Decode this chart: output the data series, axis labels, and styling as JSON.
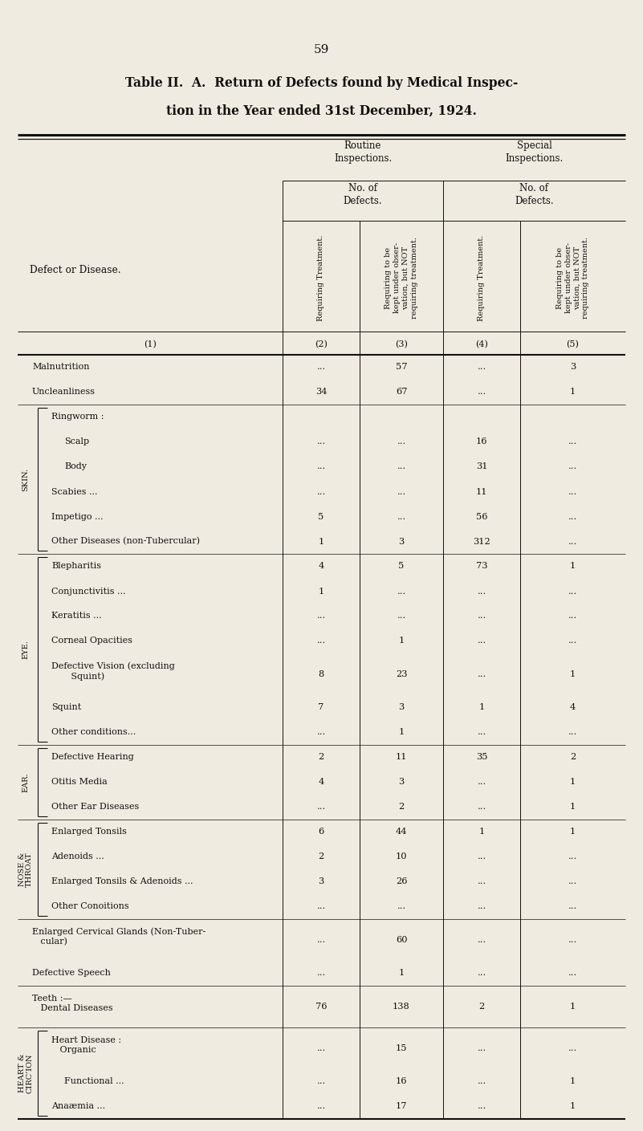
{
  "page_number": "59",
  "title_line1": "Table II.  A.  Return of Defects found by Medical Inspec-",
  "title_line2": "tion in the Year ended 31st December, 1924.",
  "bg_color": "#f0ebe0",
  "rows": [
    {
      "label": "Malnutrition",
      "dots": "...",
      "indent": 0,
      "section": "",
      "c2": "...",
      "c3": "57",
      "c4": "...",
      "c5": "3"
    },
    {
      "label": "Uncleanliness",
      "dots": "...",
      "indent": 0,
      "section": "",
      "c2": "34",
      "c3": "67",
      "c4": "...",
      "c5": "1"
    },
    {
      "label": "Ringworm :",
      "dots": "",
      "indent": 1,
      "section": "SKIN.",
      "c2": "",
      "c3": "",
      "c4": "",
      "c5": ""
    },
    {
      "label": "Scalp",
      "dots": "...",
      "indent": 2,
      "section": "",
      "c2": "...",
      "c3": "...",
      "c4": "16",
      "c5": "..."
    },
    {
      "label": "Body",
      "dots": "...",
      "indent": 2,
      "section": "",
      "c2": "...",
      "c3": "...",
      "c4": "31",
      "c5": "..."
    },
    {
      "label": "Scabies ...",
      "dots": "...",
      "indent": 1,
      "section": "",
      "c2": "...",
      "c3": "...",
      "c4": "11",
      "c5": "..."
    },
    {
      "label": "Impetigo ...",
      "dots": "...",
      "indent": 1,
      "section": "",
      "c2": "5",
      "c3": "...",
      "c4": "56",
      "c5": "..."
    },
    {
      "label": "Other Diseases (non-Tubercular)",
      "dots": "",
      "indent": 1,
      "section": "",
      "c2": "1",
      "c3": "3",
      "c4": "312",
      "c5": "..."
    },
    {
      "label": "Blepharitis",
      "dots": "...",
      "indent": 1,
      "section": "EYE.",
      "c2": "4",
      "c3": "5",
      "c4": "73",
      "c5": "1"
    },
    {
      "label": "Conjunctivitis ...",
      "dots": "...",
      "indent": 1,
      "section": "",
      "c2": "1",
      "c3": "...",
      "c4": "...",
      "c5": "..."
    },
    {
      "label": "Keratitis ...",
      "dots": "...",
      "indent": 1,
      "section": "",
      "c2": "...",
      "c3": "...",
      "c4": "...",
      "c5": "..."
    },
    {
      "label": "Corneal Opacities",
      "dots": "...",
      "indent": 1,
      "section": "",
      "c2": "...",
      "c3": "1",
      "c4": "...",
      "c5": "..."
    },
    {
      "label": "Defective Vision (excluding\n       Squint)",
      "dots": "...",
      "indent": 1,
      "section": "",
      "c2": "8",
      "c3": "23",
      "c4": "...",
      "c5": "1",
      "tall": true
    },
    {
      "label": "Squint",
      "dots": "...",
      "indent": 1,
      "section": "",
      "c2": "7",
      "c3": "3",
      "c4": "1",
      "c5": "4"
    },
    {
      "label": "Other conditions...",
      "dots": "...",
      "indent": 1,
      "section": "",
      "c2": "...",
      "c3": "1",
      "c4": "...",
      "c5": "..."
    },
    {
      "label": "Defective Hearing",
      "dots": "...",
      "indent": 1,
      "section": "EAR.",
      "c2": "2",
      "c3": "11",
      "c4": "35",
      "c5": "2"
    },
    {
      "label": "Otitis Media",
      "dots": "...",
      "indent": 1,
      "section": "",
      "c2": "4",
      "c3": "3",
      "c4": "...",
      "c5": "1"
    },
    {
      "label": "Other Ear Diseases",
      "dots": "...",
      "indent": 1,
      "section": "",
      "c2": "...",
      "c3": "2",
      "c4": "...",
      "c5": "1"
    },
    {
      "label": "Enlarged Tonsils",
      "dots": "...",
      "indent": 1,
      "section": "NOSE &\nTHROAT",
      "c2": "6",
      "c3": "44",
      "c4": "1",
      "c5": "1"
    },
    {
      "label": "Adenoids ...",
      "dots": "...",
      "indent": 1,
      "section": "",
      "c2": "2",
      "c3": "10",
      "c4": "...",
      "c5": "..."
    },
    {
      "label": "Enlarged Tonsils & Adenoids ...",
      "dots": "...",
      "indent": 1,
      "section": "",
      "c2": "3",
      "c3": "26",
      "c4": "...",
      "c5": "..."
    },
    {
      "label": "Other Conoitions",
      "dots": "...",
      "indent": 1,
      "section": "",
      "c2": "...",
      "c3": "...",
      "c4": "...",
      "c5": "..."
    },
    {
      "label": "Enlarged Cervical Glands (Non-Tuber-\n   cular)",
      "dots": "...",
      "indent": 0,
      "section": "",
      "c2": "...",
      "c3": "60",
      "c4": "...",
      "c5": "...",
      "tall": true
    },
    {
      "label": "Defective Speech",
      "dots": "...",
      "indent": 0,
      "section": "",
      "c2": "...",
      "c3": "1",
      "c4": "...",
      "c5": "..."
    },
    {
      "label": "Teeth :—\n   Dental Diseases",
      "dots": "...",
      "indent": 0,
      "section": "",
      "c2": "76",
      "c3": "138",
      "c4": "2",
      "c5": "1",
      "tall": true
    },
    {
      "label": "Heart Disease :\n   Organic",
      "dots": "...",
      "indent": 1,
      "section": "HEART &\nCIRC’ION",
      "c2": "...",
      "c3": "15",
      "c4": "...",
      "c5": "...",
      "tall": true
    },
    {
      "label": "Functional ...",
      "dots": "...",
      "indent": 2,
      "section": "",
      "c2": "...",
      "c3": "16",
      "c4": "...",
      "c5": "1"
    },
    {
      "label": "Anaæmia ...",
      "dots": "...",
      "indent": 1,
      "section": "",
      "c2": "...",
      "c3": "17",
      "c4": "...",
      "c5": "1"
    }
  ],
  "brackets": [
    {
      "label": "SKIN.",
      "start": 2,
      "end": 7
    },
    {
      "label": "EYE.",
      "start": 8,
      "end": 14
    },
    {
      "label": "EAR.",
      "start": 15,
      "end": 17
    },
    {
      "label": "NOSE &\nTHROAT",
      "start": 18,
      "end": 21
    },
    {
      "label": "HEART &\nCIRC’ION",
      "start": 25,
      "end": 27
    }
  ]
}
